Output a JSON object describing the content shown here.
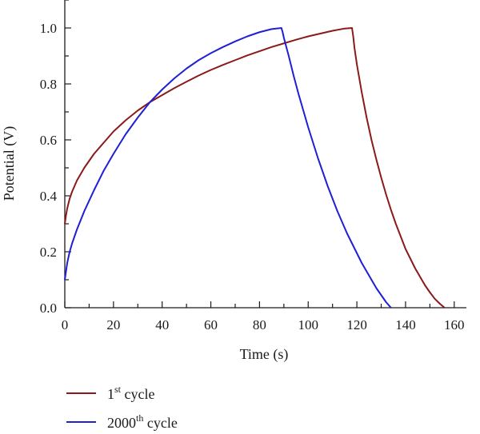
{
  "chart_data": {
    "type": "line",
    "xlabel": "Time (s)",
    "ylabel": "Potential (V)",
    "xlim": [
      0,
      165
    ],
    "ylim": [
      0,
      1.1
    ],
    "x_ticks": [
      "0",
      "20",
      "40",
      "60",
      "80",
      "100",
      "120",
      "140",
      "160"
    ],
    "y_ticks": [
      "0.0",
      "0.2",
      "0.4",
      "0.6",
      "0.8",
      "1.0"
    ],
    "grid": false,
    "legend_position": "bottom-left",
    "series": [
      {
        "name_base": "1",
        "name_sup": "st",
        "name_tail": " cycle",
        "color": "#8b1a1a",
        "x": [
          0,
          0.5,
          1,
          2,
          3,
          5,
          8,
          12,
          16,
          20,
          25,
          30,
          35,
          40,
          45,
          50,
          55,
          60,
          65,
          70,
          75,
          80,
          85,
          90,
          95,
          100,
          105,
          110,
          115,
          118,
          118.5,
          119,
          120,
          122,
          124,
          126,
          128,
          130,
          132,
          134,
          136,
          138,
          140,
          142,
          144,
          146,
          148,
          150,
          152,
          154,
          156
        ],
        "y": [
          0.3,
          0.33,
          0.355,
          0.39,
          0.415,
          0.455,
          0.5,
          0.55,
          0.59,
          0.63,
          0.67,
          0.705,
          0.735,
          0.76,
          0.785,
          0.808,
          0.83,
          0.85,
          0.868,
          0.885,
          0.902,
          0.917,
          0.932,
          0.945,
          0.958,
          0.97,
          0.98,
          0.99,
          0.998,
          1.0,
          0.97,
          0.93,
          0.87,
          0.77,
          0.68,
          0.6,
          0.53,
          0.465,
          0.405,
          0.35,
          0.3,
          0.255,
          0.21,
          0.175,
          0.14,
          0.11,
          0.08,
          0.055,
          0.032,
          0.015,
          0.0
        ]
      },
      {
        "name_base": "2000",
        "name_sup": "th",
        "name_tail": " cycle",
        "color": "#1f1fd6",
        "x": [
          0,
          0.5,
          1,
          2,
          3,
          5,
          8,
          12,
          16,
          20,
          25,
          30,
          35,
          40,
          45,
          50,
          55,
          60,
          65,
          70,
          75,
          80,
          85,
          89,
          89.5,
          90,
          92,
          94,
          96,
          98,
          100,
          102,
          104,
          106,
          108,
          110,
          112,
          114,
          116,
          118,
          120,
          122,
          124,
          126,
          128,
          130,
          132,
          134
        ],
        "y": [
          0.1,
          0.13,
          0.16,
          0.2,
          0.23,
          0.28,
          0.345,
          0.42,
          0.49,
          0.55,
          0.62,
          0.68,
          0.735,
          0.78,
          0.82,
          0.855,
          0.885,
          0.91,
          0.932,
          0.952,
          0.97,
          0.985,
          0.996,
          1.0,
          0.985,
          0.965,
          0.9,
          0.83,
          0.765,
          0.705,
          0.645,
          0.59,
          0.535,
          0.485,
          0.435,
          0.39,
          0.345,
          0.305,
          0.265,
          0.23,
          0.195,
          0.16,
          0.13,
          0.1,
          0.07,
          0.045,
          0.02,
          0.0
        ]
      }
    ]
  }
}
